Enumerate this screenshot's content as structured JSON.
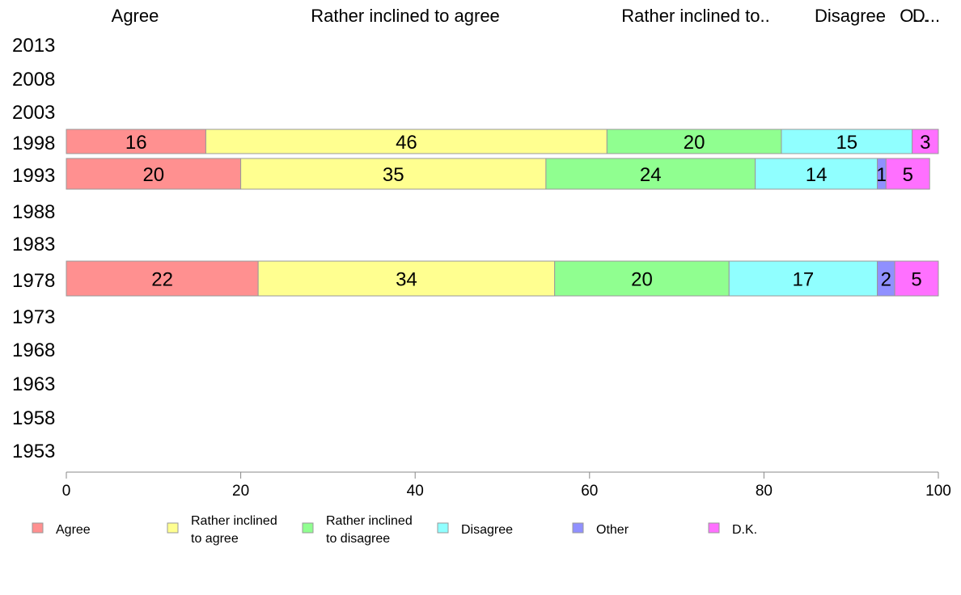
{
  "chart_data": {
    "type": "bar",
    "orientation": "horizontal",
    "stacked": true,
    "years": [
      "2013",
      "2008",
      "2003",
      "1998",
      "1993",
      "1988",
      "1983",
      "1978",
      "1973",
      "1968",
      "1963",
      "1958",
      "1953"
    ],
    "top_labels": [
      "Agree",
      "Rather inclined to agree",
      "Rather inclined to..",
      "Disagree",
      "O...",
      "D..."
    ],
    "series": [
      {
        "name": "Agree",
        "legend": [
          "Agree"
        ],
        "color": "#ff9090",
        "values": {
          "1998": 16,
          "1993": 20,
          "1978": 22
        }
      },
      {
        "name": "Rather inclined to agree",
        "legend": [
          "Rather inclined",
          "to agree"
        ],
        "color": "#ffff90",
        "values": {
          "1998": 46,
          "1993": 35,
          "1978": 34
        }
      },
      {
        "name": "Rather inclined to disagree",
        "legend": [
          "Rather inclined",
          "to disagree"
        ],
        "color": "#90ff90",
        "values": {
          "1998": 20,
          "1993": 24,
          "1978": 20
        }
      },
      {
        "name": "Disagree",
        "legend": [
          "Disagree"
        ],
        "color": "#90ffff",
        "values": {
          "1998": 15,
          "1993": 14,
          "1978": 17
        }
      },
      {
        "name": "Other",
        "legend": [
          "Other"
        ],
        "color": "#9090ff",
        "values": {
          "1998": 0,
          "1993": 1,
          "1978": 2
        }
      },
      {
        "name": "D.K.",
        "legend": [
          "D.K."
        ],
        "color": "#ff70ff",
        "values": {
          "1998": 3,
          "1993": 5,
          "1978": 5
        }
      }
    ],
    "xlim": [
      0,
      100
    ],
    "xticks": [
      0,
      20,
      40,
      60,
      80,
      100
    ],
    "legend_position": "bottom",
    "grid": false
  }
}
